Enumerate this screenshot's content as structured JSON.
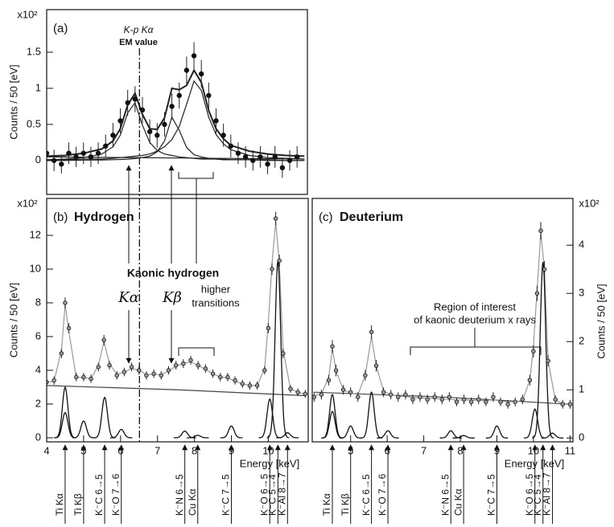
{
  "chart_data": [
    {
      "type": "scatter",
      "label": "(a)",
      "ylabel": "Counts / 50 [eV]",
      "scale_label": "x10²",
      "xlim": [
        4,
        11.08
      ],
      "ylim": [
        -0.47,
        2.09
      ],
      "yticks": [
        0,
        0.5,
        1,
        1.5
      ],
      "em_value_line": 6.52,
      "annotations": [
        "K-p Kα",
        "EM value"
      ],
      "points": {
        "color": "#111",
        "x": [
          4.0,
          4.2,
          4.4,
          4.6,
          4.8,
          5.0,
          5.2,
          5.4,
          5.6,
          5.8,
          6.0,
          6.2,
          6.4,
          6.6,
          6.8,
          7.0,
          7.2,
          7.4,
          7.6,
          7.8,
          8.0,
          8.2,
          8.4,
          8.6,
          8.8,
          9.0,
          9.2,
          9.4,
          9.6,
          9.8,
          10.0,
          10.2,
          10.4,
          10.6,
          10.8
        ],
        "values": [
          0.1,
          0,
          -0.05,
          0.1,
          0.05,
          0.1,
          0.05,
          0.1,
          0.2,
          0.35,
          0.55,
          0.8,
          0.85,
          0.7,
          0.4,
          0.35,
          0.5,
          0.75,
          0.9,
          1.25,
          1.45,
          1.2,
          0.9,
          0.55,
          0.35,
          0.2,
          0.1,
          0.05,
          0,
          0.05,
          -0.05,
          0.05,
          -0.1,
          0,
          0.05
        ],
        "errors": [
          0.14,
          0.15,
          0.13,
          0.15,
          0.14,
          0.15,
          0.14,
          0.15,
          0.16,
          0.17,
          0.17,
          0.18,
          0.18,
          0.18,
          0.17,
          0.17,
          0.17,
          0.18,
          0.18,
          0.19,
          0.19,
          0.19,
          0.18,
          0.17,
          0.16,
          0.16,
          0.15,
          0.15,
          0.14,
          0.15,
          0.14,
          0.15,
          0.14,
          0.14,
          0.15
        ]
      },
      "fits": [
        {
          "color": "#222",
          "x": [
            4.0,
            4.5,
            5.0,
            5.5,
            5.8,
            6.0,
            6.2,
            6.4,
            6.6,
            6.8,
            7.0,
            7.2,
            7.4,
            7.6,
            7.8,
            8.0,
            8.2,
            8.4,
            8.6,
            8.8,
            9.0,
            9.5,
            10.0,
            10.5,
            11.0
          ],
          "values": [
            0.06,
            0.07,
            0.1,
            0.16,
            0.27,
            0.44,
            0.77,
            0.93,
            0.64,
            0.44,
            0.43,
            0.59,
            1.0,
            0.98,
            1.04,
            1.25,
            1.08,
            0.69,
            0.44,
            0.3,
            0.21,
            0.13,
            0.09,
            0.07,
            0.06
          ]
        },
        {
          "color": "#222",
          "x": [
            4.0,
            4.5,
            5.0,
            5.5,
            5.8,
            6.0,
            6.2,
            6.4,
            6.6,
            6.8,
            7.0,
            7.2,
            7.4,
            7.6,
            7.8,
            8.0,
            8.2,
            8.4,
            8.6,
            8.8,
            9.0,
            9.5,
            10.0,
            10.5,
            11.0
          ],
          "values": [
            0.01,
            0.02,
            0.04,
            0.09,
            0.19,
            0.35,
            0.66,
            0.8,
            0.49,
            0.25,
            0.14,
            0.09,
            0.07,
            0.05,
            0.04,
            0.03,
            0.02,
            0.02,
            0.02,
            0.01,
            0.01,
            0.01,
            0.01,
            0,
            0
          ]
        },
        {
          "color": "#222",
          "x": [
            4.0,
            4.5,
            5.0,
            5.5,
            5.8,
            6.0,
            6.2,
            6.4,
            6.6,
            6.8,
            7.0,
            7.2,
            7.4,
            7.6,
            7.8,
            8.0,
            8.2,
            8.4,
            8.6,
            8.8,
            9.0,
            9.5,
            10.0,
            10.5,
            11.0
          ],
          "values": [
            0,
            0,
            0.005,
            0.008,
            0.011,
            0.014,
            0.019,
            0.026,
            0.04,
            0.06,
            0.12,
            0.27,
            0.6,
            0.42,
            0.18,
            0.08,
            0.05,
            0.03,
            0.02,
            0.02,
            0.01,
            0.01,
            0,
            0,
            0
          ]
        },
        {
          "color": "#222",
          "x": [
            4.0,
            4.5,
            5.0,
            5.5,
            5.8,
            6.0,
            6.2,
            6.4,
            6.6,
            6.8,
            7.0,
            7.2,
            7.4,
            7.6,
            7.8,
            8.0,
            8.2,
            8.4,
            8.6,
            8.8,
            9.0,
            9.5,
            10.0,
            10.5,
            11.0
          ],
          "values": [
            0.01,
            0.01,
            0.02,
            0.02,
            0.03,
            0.04,
            0.05,
            0.06,
            0.07,
            0.09,
            0.13,
            0.19,
            0.29,
            0.47,
            0.78,
            1.1,
            0.97,
            0.6,
            0.36,
            0.23,
            0.15,
            0.07,
            0.04,
            0.03,
            0.02
          ]
        },
        {
          "color": "#222",
          "x": [
            4.0,
            11.0
          ],
          "values": [
            0.05,
            0.02
          ]
        }
      ]
    },
    {
      "type": "scatter",
      "label": "(b)",
      "title": "Hydrogen",
      "ylabel": "Counts / 50 [eV]",
      "scale_label": "x10²",
      "xlabel": "Energy [keV]",
      "xlim": [
        4,
        11.08
      ],
      "ylim": [
        -0.24,
        14.19
      ],
      "yticks": [
        0,
        2,
        4,
        6,
        8,
        10,
        12
      ],
      "xticks": [
        4,
        5,
        6,
        7,
        8,
        9,
        10
      ],
      "annotations": [
        "Kaonic hydrogen",
        "Kα",
        "Kβ",
        "higher",
        "transitions"
      ],
      "points": {
        "color": "#999",
        "x": [
          4.0,
          4.2,
          4.4,
          4.5,
          4.6,
          4.8,
          5.0,
          5.2,
          5.4,
          5.55,
          5.7,
          5.9,
          6.1,
          6.3,
          6.5,
          6.7,
          6.9,
          7.1,
          7.3,
          7.5,
          7.7,
          7.9,
          8.1,
          8.3,
          8.5,
          8.7,
          8.9,
          9.1,
          9.3,
          9.5,
          9.7,
          9.9,
          10.0,
          10.1,
          10.2,
          10.3,
          10.4,
          10.6,
          10.8,
          11.0
        ],
        "values": [
          3.3,
          3.4,
          5.0,
          8.0,
          6.5,
          3.6,
          3.6,
          3.5,
          4.2,
          5.8,
          4.3,
          3.7,
          3.9,
          4.2,
          4.0,
          3.7,
          3.8,
          3.7,
          4.0,
          4.3,
          4.4,
          4.6,
          4.3,
          4.1,
          3.8,
          3.6,
          3.6,
          3.4,
          3.2,
          3.1,
          3.1,
          4.0,
          6.5,
          10.0,
          13.0,
          10.5,
          5.0,
          2.9,
          2.7,
          2.6
        ],
        "errors": [
          0.25,
          0.25,
          0.28,
          0.32,
          0.3,
          0.25,
          0.25,
          0.25,
          0.26,
          0.3,
          0.26,
          0.25,
          0.25,
          0.26,
          0.25,
          0.25,
          0.25,
          0.25,
          0.25,
          0.26,
          0.26,
          0.26,
          0.26,
          0.25,
          0.25,
          0.25,
          0.25,
          0.24,
          0.24,
          0.24,
          0.24,
          0.25,
          0.3,
          0.35,
          0.4,
          0.36,
          0.28,
          0.23,
          0.23,
          0.23
        ]
      },
      "fits": [
        {
          "color": "#444",
          "x": [
            4.0,
            7.5,
            11.0
          ],
          "values": [
            3.1,
            2.85,
            2.5
          ]
        },
        {
          "color": "#999",
          "x": [
            4.0,
            4.2,
            4.4,
            4.5,
            4.6,
            4.8,
            5.0,
            5.2,
            5.4,
            5.55,
            5.7,
            5.9,
            6.1,
            6.3,
            6.5,
            6.7,
            6.9,
            7.1,
            7.3,
            7.5,
            7.7,
            7.9,
            8.1,
            8.3,
            8.5,
            8.7,
            8.9,
            9.1,
            9.3,
            9.5,
            9.7,
            9.9,
            10.0,
            10.1,
            10.2,
            10.3,
            10.4,
            10.6,
            10.8,
            11.0
          ],
          "values": [
            3.3,
            3.35,
            5.2,
            7.9,
            6.3,
            3.6,
            3.55,
            3.5,
            4.3,
            5.7,
            4.4,
            3.75,
            3.9,
            4.1,
            4.0,
            3.75,
            3.75,
            3.75,
            3.95,
            4.25,
            4.4,
            4.5,
            4.3,
            4.05,
            3.8,
            3.6,
            3.55,
            3.35,
            3.2,
            3.1,
            3.1,
            4.1,
            6.8,
            10.3,
            12.8,
            10.3,
            5.2,
            2.9,
            2.7,
            2.6
          ]
        }
      ],
      "peaks": [
        {
          "name": "Ti Kα",
          "position": 4.5,
          "heights": [
            3.0,
            1.5
          ]
        },
        {
          "name": "Ti Kβ",
          "position": 5.0,
          "heights": [
            1.0
          ]
        },
        {
          "name": "K⁻C 6→5",
          "position": 5.57,
          "heights": [
            2.4
          ]
        },
        {
          "name": "K⁻O 7→6",
          "position": 6.02,
          "heights": [
            0.5
          ]
        },
        {
          "name": "K⁻N 6→5",
          "position": 7.74,
          "heights": [
            0.4
          ]
        },
        {
          "name": "Cu Kα",
          "position": 8.09,
          "heights": [
            0.15
          ]
        },
        {
          "name": "K⁻C 7→5",
          "position": 9.0,
          "heights": [
            0.7
          ]
        },
        {
          "name": "K⁻O 6→5",
          "position": 10.04,
          "heights": [
            2.3
          ]
        },
        {
          "name": "K⁻C 5→4",
          "position": 10.26,
          "heights": [
            10.5
          ]
        },
        {
          "name": "K⁻Al 8→7",
          "position": 10.52,
          "heights": [
            0.3
          ]
        }
      ]
    },
    {
      "type": "scatter",
      "label": "(c)",
      "title": "Deuterium",
      "ylabel": "Counts / 50 [eV]",
      "scale_label": "x10²",
      "xlabel": "Energy [keV]",
      "xlim": [
        3.95,
        11.08
      ],
      "y2lim": [
        -0.08,
        4.97
      ],
      "y2ticks": [
        0,
        1,
        2,
        3,
        4
      ],
      "xticks": [
        5,
        6,
        7,
        8,
        9,
        10,
        11
      ],
      "annotations": [
        "Region of interest",
        "of kaonic deuterium x rays"
      ],
      "points": {
        "color": "#999",
        "axis": "y2",
        "x": [
          4.0,
          4.2,
          4.4,
          4.5,
          4.6,
          4.8,
          5.0,
          5.2,
          5.4,
          5.57,
          5.7,
          5.9,
          6.1,
          6.3,
          6.5,
          6.7,
          6.9,
          7.1,
          7.3,
          7.5,
          7.7,
          7.9,
          8.1,
          8.3,
          8.5,
          8.7,
          8.9,
          9.1,
          9.3,
          9.5,
          9.7,
          9.9,
          10.0,
          10.1,
          10.2,
          10.3,
          10.4,
          10.6,
          10.8,
          11.0
        ],
        "values": [
          0.85,
          0.9,
          1.2,
          1.9,
          1.4,
          1.0,
          0.95,
          0.85,
          1.3,
          2.2,
          1.5,
          0.95,
          0.9,
          0.85,
          0.9,
          0.8,
          0.85,
          0.8,
          0.85,
          0.8,
          0.85,
          0.75,
          0.8,
          0.75,
          0.8,
          0.75,
          0.85,
          0.75,
          0.7,
          0.75,
          0.8,
          1.2,
          1.8,
          3.0,
          4.3,
          3.5,
          1.6,
          0.8,
          0.7,
          0.7
        ],
        "errors": [
          0.1,
          0.1,
          0.11,
          0.13,
          0.12,
          0.1,
          0.1,
          0.1,
          0.11,
          0.14,
          0.12,
          0.1,
          0.1,
          0.1,
          0.1,
          0.1,
          0.1,
          0.1,
          0.1,
          0.1,
          0.1,
          0.09,
          0.1,
          0.09,
          0.1,
          0.09,
          0.1,
          0.09,
          0.09,
          0.09,
          0.1,
          0.11,
          0.13,
          0.16,
          0.18,
          0.17,
          0.12,
          0.09,
          0.09,
          0.09
        ]
      },
      "fits": [
        {
          "color": "#444",
          "x": [
            4.0,
            7.5,
            11.0
          ],
          "values": [
            0.95,
            0.85,
            0.7
          ]
        },
        {
          "color": "#999",
          "x": [
            4.0,
            4.2,
            4.4,
            4.5,
            4.6,
            4.8,
            5.0,
            5.2,
            5.4,
            5.57,
            5.7,
            5.9,
            6.1,
            6.3,
            6.5,
            6.7,
            6.9,
            7.1,
            7.3,
            7.5,
            7.7,
            7.9,
            8.1,
            8.3,
            8.5,
            8.7,
            8.9,
            9.1,
            9.3,
            9.5,
            9.7,
            9.9,
            10.0,
            10.1,
            10.2,
            10.3,
            10.4,
            10.6,
            10.8,
            11.0
          ],
          "values": [
            0.88,
            0.92,
            1.25,
            1.85,
            1.4,
            1.0,
            0.93,
            0.9,
            1.3,
            2.1,
            1.5,
            0.97,
            0.9,
            0.87,
            0.86,
            0.84,
            0.83,
            0.82,
            0.82,
            0.81,
            0.8,
            0.79,
            0.79,
            0.78,
            0.78,
            0.77,
            0.8,
            0.76,
            0.75,
            0.75,
            0.78,
            1.2,
            1.9,
            3.1,
            4.25,
            3.5,
            1.6,
            0.78,
            0.72,
            0.7
          ]
        }
      ],
      "peaks": [
        {
          "name": "Ti Kα",
          "position": 4.5,
          "heights": [
            0.9,
            0.55
          ]
        },
        {
          "name": "Ti Kβ",
          "position": 5.0,
          "heights": [
            0.25
          ]
        },
        {
          "name": "K⁻C 6→5",
          "position": 5.57,
          "heights": [
            0.95
          ]
        },
        {
          "name": "K⁻O 7→6",
          "position": 6.02,
          "heights": [
            0.15
          ]
        },
        {
          "name": "K⁻N 6→5",
          "position": 7.74,
          "heights": [
            0.15
          ]
        },
        {
          "name": "Cu Kα",
          "position": 8.09,
          "heights": [
            0.05
          ]
        },
        {
          "name": "K⁻C 7→5",
          "position": 9.0,
          "heights": [
            0.25
          ]
        },
        {
          "name": "K⁻O 6→5",
          "position": 10.04,
          "heights": [
            0.6
          ]
        },
        {
          "name": "K⁻C 5→4",
          "position": 10.26,
          "heights": [
            3.65
          ]
        },
        {
          "name": "K⁻Al 8→7",
          "position": 10.52,
          "heights": [
            0.1
          ]
        }
      ]
    }
  ]
}
